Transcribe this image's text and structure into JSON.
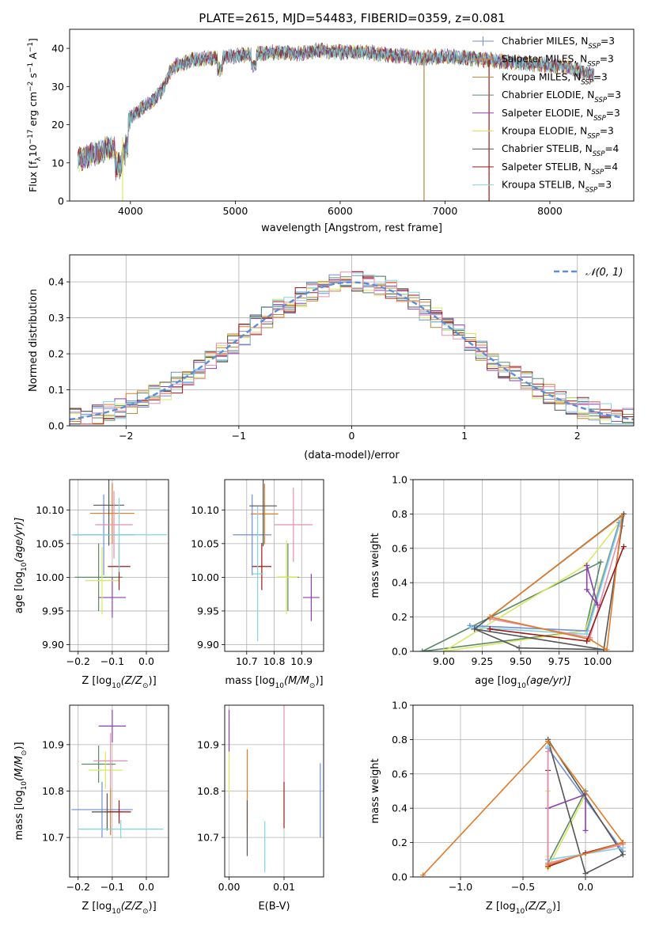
{
  "figure": {
    "title": "PLATE=2615, MJD=54483, FIBERID=0359, z=0.081"
  },
  "colors": {
    "Chabrier MILES": "#6f8fd8",
    "Salpeter MILES": "#e07b28",
    "Kroupa MILES": "#b08a3a",
    "Chabrier ELODIE": "#5a8a6a",
    "Salpeter ELODIE": "#8e3fb0",
    "Kroupa ELODIE": "#d9e860",
    "Chabrier STELIB": "#555555",
    "Salpeter STELIB": "#a01818",
    "Kroupa STELIB": "#80d4e0",
    "pink": "#e88fb0",
    "grid": "#b0b0b0",
    "normal_curve": "#5b8dd9"
  },
  "chart_data": [
    {
      "id": "spectrum",
      "type": "line",
      "xlabel": "wavelength [Angstrom, rest frame]",
      "ylabel": "Flux [f",
      "ylabel_sub": "λ",
      "ylabel_rest": "10",
      "ylabel_sup": "−17",
      "ylabel_tail": " erg cm",
      "xlim": [
        3420,
        8800
      ],
      "ylim": [
        0,
        45
      ],
      "xticks": [
        4000,
        5000,
        6000,
        7000,
        8000
      ],
      "yticks": [
        0,
        10,
        20,
        30,
        40
      ],
      "grid": false,
      "legend_position": "right",
      "legend": [
        {
          "name": "Chabrier MILES, N",
          "sub": "SSP",
          "tail": "=3",
          "color_key": "Chabrier MILES",
          "marker": true
        },
        {
          "name": "Salpeter MILES, N",
          "sub": "SSP",
          "tail": "=3",
          "color_key": "Salpeter MILES",
          "marker": true
        },
        {
          "name": "Kroupa MILES, N",
          "sub": "SSP",
          "tail": "=3",
          "color_key": "Kroupa MILES",
          "marker": false
        },
        {
          "name": "Chabrier ELODIE, N",
          "sub": "SSP",
          "tail": "=3",
          "color_key": "Chabrier ELODIE",
          "marker": false
        },
        {
          "name": "Salpeter ELODIE, N",
          "sub": "SSP",
          "tail": "=3",
          "color_key": "Salpeter ELODIE",
          "marker": false
        },
        {
          "name": "Kroupa ELODIE, N",
          "sub": "SSP",
          "tail": "=3",
          "color_key": "Kroupa ELODIE",
          "marker": false
        },
        {
          "name": "Chabrier STELIB, N",
          "sub": "SSP",
          "tail": "=4",
          "color_key": "Chabrier STELIB",
          "marker": false
        },
        {
          "name": "Salpeter STELIB, N",
          "sub": "SSP",
          "tail": "=4",
          "color_key": "Salpeter STELIB",
          "marker": false
        },
        {
          "name": "Kroupa STELIB, N",
          "sub": "SSP",
          "tail": "=3",
          "color_key": "Kroupa STELIB",
          "marker": false
        }
      ],
      "continuum": {
        "x": [
          3500,
          3700,
          3900,
          4000,
          4200,
          4300,
          4400,
          4600,
          4800,
          5000,
          5200,
          5400,
          5600,
          5800,
          6000,
          6200,
          6400,
          6600,
          6800,
          7000,
          7200,
          7400,
          7600,
          7800,
          8000,
          8200,
          8400
        ],
        "y": [
          11,
          13,
          15,
          22,
          26,
          29,
          35,
          37,
          37.5,
          38,
          38.5,
          39,
          38.5,
          39.5,
          39,
          39,
          38.5,
          38,
          37.5,
          38,
          37.5,
          37,
          36.5,
          36,
          35.5,
          35,
          33
        ]
      },
      "spikes": [
        {
          "x": 3925,
          "y_low": 0,
          "color_key": "Kroupa ELODIE"
        },
        {
          "x": 6800,
          "y_low": 0,
          "color_key": "Kroupa MILES"
        },
        {
          "x": 7420,
          "y_low": 0,
          "color_key": "Salpeter STELIB"
        }
      ]
    },
    {
      "id": "residuals",
      "type": "step",
      "xlabel": "(data-model)/error",
      "ylabel": "Normed distribution",
      "xlim": [
        -2.5,
        2.5
      ],
      "ylim": [
        0,
        0.475
      ],
      "xticks": [
        -2,
        -1,
        0,
        1,
        2
      ],
      "yticks": [
        0.0,
        0.1,
        0.2,
        0.3,
        0.4
      ],
      "grid": true,
      "legend_position": "top-right",
      "legend_label": "𝒩(0, 1)",
      "bin_width": 0.1,
      "normal": {
        "mean": 0,
        "sigma": 1
      }
    },
    {
      "id": "age-vs-Z",
      "type": "errorbar",
      "xlabel": "Z [log",
      "xlabel_sub": "10",
      "xlabel_tail": "(Z/Z",
      "xlabel_end": ")]",
      "ylabel": "age  [log",
      "ylabel_sub": "10",
      "ylabel_tail": "(age/yr)]",
      "xlim": [
        -0.225,
        0.065
      ],
      "ylim": [
        9.89,
        10.145
      ],
      "xticks": [
        -0.2,
        -0.1,
        0.0
      ],
      "yticks": [
        9.9,
        9.95,
        10.0,
        10.05,
        10.1
      ],
      "grid": true,
      "points": [
        {
          "color_key": "Chabrier MILES",
          "x": -0.125,
          "xerr": 0.09,
          "y": 10.063,
          "yerr": 0.06
        },
        {
          "color_key": "Salpeter MILES",
          "x": -0.1,
          "xerr": 0.065,
          "y": 10.095,
          "yerr": 0.045
        },
        {
          "color_key": "Chabrier ELODIE",
          "x": -0.14,
          "xerr": 0.07,
          "y": 10.0,
          "yerr": 0.05
        },
        {
          "color_key": "Salpeter ELODIE",
          "x": -0.1,
          "xerr": 0.04,
          "y": 9.97,
          "yerr": 0.03
        },
        {
          "color_key": "Kroupa ELODIE",
          "x": -0.13,
          "xerr": 0.05,
          "y": 9.995,
          "yerr": 0.05
        },
        {
          "color_key": "Chabrier STELIB",
          "x": -0.11,
          "xerr": 0.045,
          "y": 10.107,
          "yerr": 0.06
        },
        {
          "color_key": "Salpeter STELIB",
          "x": -0.08,
          "xerr": 0.033,
          "y": 10.016,
          "yerr": 0.035
        },
        {
          "color_key": "Kroupa STELIB",
          "x": -0.08,
          "xerr": 0.14,
          "y": 10.063,
          "yerr": 0.055
        },
        {
          "color_key": "pink",
          "x": -0.095,
          "xerr": 0.055,
          "y": 10.078,
          "yerr": 0.05
        }
      ]
    },
    {
      "id": "age-vs-mass",
      "type": "errorbar",
      "xlabel": "mass [log",
      "xlabel_sub": "10",
      "xlabel_tail": "(M/M",
      "xlabel_end": ")]",
      "xlim": [
        10.62,
        10.98
      ],
      "ylim": [
        9.89,
        10.145
      ],
      "xticks": [
        10.7,
        10.8,
        10.9
      ],
      "yticks": [
        9.9,
        9.95,
        10.0,
        10.05,
        10.1
      ],
      "grid": true,
      "points": [
        {
          "color_key": "Chabrier MILES",
          "x": 10.72,
          "xerr": 0.07,
          "y": 10.063,
          "yerr": 0.06
        },
        {
          "color_key": "Salpeter MILES",
          "x": 10.765,
          "xerr": 0.05,
          "y": 10.094,
          "yerr": 0.045
        },
        {
          "color_key": "Chabrier ELODIE",
          "x": 10.85,
          "xerr": 0.04,
          "y": 10.0,
          "yerr": 0.05
        },
        {
          "color_key": "Salpeter ELODIE",
          "x": 10.935,
          "xerr": 0.03,
          "y": 9.97,
          "yerr": 0.035
        },
        {
          "color_key": "Kroupa ELODIE",
          "x": 10.845,
          "xerr": 0.04,
          "y": 10.0,
          "yerr": 0.055
        },
        {
          "color_key": "Chabrier STELIB",
          "x": 10.76,
          "xerr": 0.05,
          "y": 10.106,
          "yerr": 0.06
        },
        {
          "color_key": "Salpeter STELIB",
          "x": 10.755,
          "xerr": 0.035,
          "y": 10.016,
          "yerr": 0.035
        },
        {
          "color_key": "Kroupa STELIB",
          "x": 10.74,
          "xerr": 0.02,
          "y": 10.005,
          "yerr": 0.1
        },
        {
          "color_key": "pink",
          "x": 10.87,
          "xerr": 0.07,
          "y": 10.078,
          "yerr": 0.055
        }
      ]
    },
    {
      "id": "mass-weight-vs-age",
      "type": "line",
      "xlabel": "age  [log",
      "xlabel_sub": "10",
      "xlabel_tail": "(age/yr)]",
      "ylabel": "mass weight",
      "xlim": [
        8.8,
        10.23
      ],
      "ylim": [
        0,
        1.0
      ],
      "xticks": [
        9.0,
        9.25,
        9.5,
        9.75,
        10.0
      ],
      "yticks": [
        0.0,
        0.2,
        0.4,
        0.6,
        0.8,
        1.0
      ],
      "grid": true,
      "series": [
        {
          "color_key": "Chabrier ELODIE",
          "x": [
            8.86,
            10.02,
            9.92,
            8.86
          ],
          "y": [
            0.0,
            0.52,
            0.12,
            0.0
          ]
        },
        {
          "color_key": "Kroupa ELODIE",
          "x": [
            9.0,
            9.92,
            10.14,
            9.92,
            9.0
          ],
          "y": [
            0.0,
            0.5,
            0.75,
            0.12,
            0.0
          ]
        },
        {
          "color_key": "Chabrier MILES",
          "x": [
            9.17,
            9.93,
            10.14,
            9.93,
            9.17
          ],
          "y": [
            0.15,
            0.12,
            0.75,
            0.12,
            0.15
          ]
        },
        {
          "color_key": "Kroupa STELIB",
          "x": [
            9.18,
            9.93,
            10.15,
            9.93,
            9.18
          ],
          "y": [
            0.14,
            0.1,
            0.76,
            0.1,
            0.14
          ]
        },
        {
          "color_key": "pink",
          "x": [
            9.3,
            9.95,
            10.16,
            9.95,
            9.3
          ],
          "y": [
            0.19,
            0.08,
            0.73,
            0.08,
            0.19
          ]
        },
        {
          "color_key": "Salpeter ELODIE",
          "x": [
            9.93,
            9.93,
            10.0,
            9.93
          ],
          "y": [
            0.5,
            0.36,
            0.27,
            0.5
          ]
        },
        {
          "color_key": "Chabrier STELIB",
          "x": [
            9.2,
            10.04,
            10.17,
            9.2,
            9.49,
            10.04
          ],
          "y": [
            0.13,
            0.01,
            0.8,
            0.13,
            0.02,
            0.01
          ]
        },
        {
          "color_key": "Salpeter MILES",
          "x": [
            9.3,
            9.95,
            10.06,
            10.16,
            9.3
          ],
          "y": [
            0.2,
            0.07,
            0.01,
            0.79,
            0.2
          ]
        },
        {
          "color_key": "Salpeter STELIB",
          "x": [
            9.3,
            9.93,
            10.17,
            9.93,
            9.3
          ],
          "y": [
            0.13,
            0.06,
            0.61,
            0.06,
            0.13
          ]
        }
      ]
    },
    {
      "id": "mass-vs-Z",
      "type": "errorbar",
      "xlabel": "Z [log",
      "xlabel_sub": "10",
      "xlabel_tail": "(Z/Z",
      "xlabel_end": ")]",
      "ylabel": "mass [log",
      "ylabel_sub": "10",
      "ylabel_tail": "(M/M",
      "ylabel_end": ")]",
      "xlim": [
        -0.225,
        0.065
      ],
      "ylim": [
        10.615,
        10.985
      ],
      "xticks": [
        -0.2,
        -0.1,
        0.0
      ],
      "yticks": [
        10.7,
        10.8,
        10.9
      ],
      "grid": true,
      "points": [
        {
          "color_key": "Chabrier MILES",
          "x": -0.13,
          "xerr": 0.09,
          "y": 10.76,
          "yerr": 0.06
        },
        {
          "color_key": "Salpeter MILES",
          "x": -0.105,
          "xerr": 0.055,
          "y": 10.755,
          "yerr": 0.05
        },
        {
          "color_key": "Chabrier ELODIE",
          "x": -0.14,
          "xerr": 0.05,
          "y": 10.858,
          "yerr": 0.04
        },
        {
          "color_key": "Salpeter ELODIE",
          "x": -0.1,
          "xerr": 0.04,
          "y": 10.94,
          "yerr": 0.035
        },
        {
          "color_key": "Kroupa ELODIE",
          "x": -0.12,
          "xerr": 0.05,
          "y": 10.845,
          "yerr": 0.04
        },
        {
          "color_key": "Chabrier STELIB",
          "x": -0.115,
          "xerr": 0.045,
          "y": 10.755,
          "yerr": 0.04
        },
        {
          "color_key": "Salpeter STELIB",
          "x": -0.08,
          "xerr": 0.035,
          "y": 10.755,
          "yerr": 0.025
        },
        {
          "color_key": "Kroupa STELIB",
          "x": -0.075,
          "xerr": 0.125,
          "y": 10.718,
          "yerr": 0.02
        },
        {
          "color_key": "pink",
          "x": -0.105,
          "xerr": 0.05,
          "y": 10.865,
          "yerr": 0.06
        }
      ]
    },
    {
      "id": "mass-vs-ebv",
      "type": "errorbar",
      "xlabel": "E(B-V)",
      "xlim": [
        -0.0008,
        0.0172
      ],
      "ylim": [
        10.615,
        10.985
      ],
      "xticks": [
        0.0,
        0.01
      ],
      "yticks": [
        10.7,
        10.8,
        10.9
      ],
      "grid": true,
      "points": [
        {
          "color_key": "Chabrier MILES",
          "x": 0.0166,
          "xerr": 0,
          "y": 10.78,
          "yerr": 0.08
        },
        {
          "color_key": "Salpeter MILES",
          "x": 0.0033,
          "xerr": 0,
          "y": 10.8,
          "yerr": 0.09
        },
        {
          "color_key": "Salpeter ELODIE",
          "x": 0.0,
          "xerr": 0,
          "y": 10.93,
          "yerr": 0.045
        },
        {
          "color_key": "Kroupa ELODIE",
          "x": 0.0,
          "xerr": 0,
          "y": 10.84,
          "yerr": 0.045
        },
        {
          "color_key": "Chabrier STELIB",
          "x": 0.0033,
          "xerr": 0,
          "y": 10.72,
          "yerr": 0.06
        },
        {
          "color_key": "Salpeter STELIB",
          "x": 0.01,
          "xerr": 0,
          "y": 10.77,
          "yerr": 0.05
        },
        {
          "color_key": "Kroupa STELIB",
          "x": 0.0065,
          "xerr": 0,
          "y": 10.68,
          "yerr": 0.055
        },
        {
          "color_key": "pink",
          "x": 0.01,
          "xerr": 0,
          "y": 10.905,
          "yerr": 0.085
        }
      ]
    },
    {
      "id": "mass-weight-vs-Z",
      "type": "line",
      "xlabel": "Z [log",
      "xlabel_sub": "10",
      "xlabel_tail": "(Z/Z",
      "xlabel_end": ")]",
      "ylabel": "mass weight",
      "xlim": [
        -1.38,
        0.38
      ],
      "ylim": [
        0,
        1.0
      ],
      "xticks": [
        -1.0,
        -0.5,
        0.0
      ],
      "yticks": [
        0.0,
        0.2,
        0.4,
        0.6,
        0.8,
        1.0
      ],
      "grid": true,
      "series": [
        {
          "color_key": "Chabrier MILES",
          "x": [
            -0.3,
            -0.3,
            0.3
          ],
          "y": [
            0.1,
            0.75,
            0.15
          ]
        },
        {
          "color_key": "Kroupa ELODIE",
          "x": [
            -0.3,
            -0.3,
            -0.3,
            0.0,
            -0.3
          ],
          "y": [
            0.5,
            0.12,
            0.05,
            0.48,
            0.05
          ]
        },
        {
          "color_key": "Chabrier ELODIE",
          "x": [
            -0.3,
            0.0,
            -0.3
          ],
          "y": [
            0.08,
            0.5,
            0.08
          ]
        },
        {
          "color_key": "Salpeter ELODIE",
          "x": [
            -0.3,
            0.0,
            0.0
          ],
          "y": [
            0.4,
            0.48,
            0.27
          ]
        },
        {
          "color_key": "Chabrier STELIB",
          "x": [
            -0.3,
            0.0,
            0.3,
            -0.3
          ],
          "y": [
            0.8,
            0.02,
            0.13,
            0.8
          ]
        },
        {
          "color_key": "Salpeter STELIB",
          "x": [
            -0.3,
            -0.3,
            0.0,
            0.3
          ],
          "y": [
            0.62,
            0.06,
            0.14,
            0.2
          ]
        },
        {
          "color_key": "Kroupa STELIB",
          "x": [
            -0.3,
            -0.3,
            0.3
          ],
          "y": [
            0.76,
            0.1,
            0.17
          ]
        },
        {
          "color_key": "pink",
          "x": [
            -0.3,
            -0.3,
            0.3
          ],
          "y": [
            0.73,
            0.08,
            0.19
          ]
        },
        {
          "color_key": "Salpeter MILES",
          "x": [
            -1.3,
            -0.3,
            0.3,
            -0.3
          ],
          "y": [
            0.01,
            0.79,
            0.2,
            0.07
          ]
        }
      ]
    }
  ]
}
